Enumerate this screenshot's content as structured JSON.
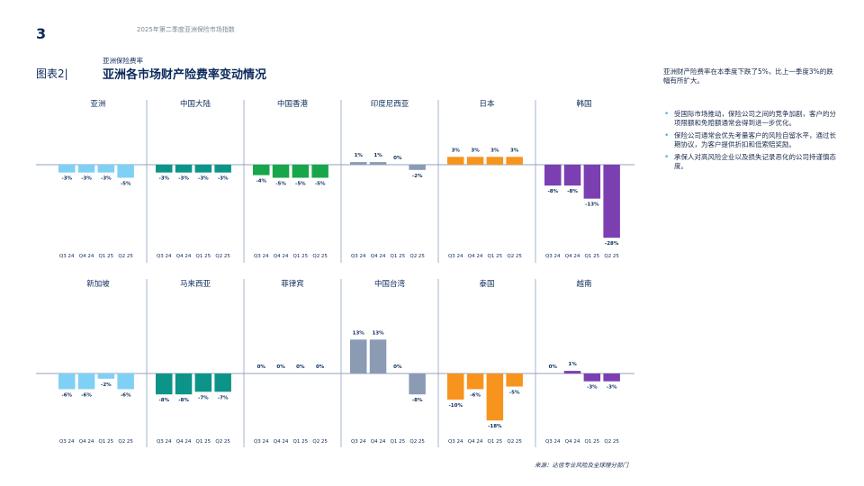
{
  "header": {
    "page_number": "3",
    "report_title": "2025年第二季度亚洲保险市场指数",
    "figure_label": "图表2|",
    "section_label": "亚洲保险费率",
    "chart_title": "亚洲各市场财产险费率变动情况"
  },
  "sidebar": {
    "summary": "亚洲财产险费率在本季度下跌了5%，比上一季度3%的跌幅有所扩大。",
    "bullets": [
      "受国际市场推动，保险公司之间的竞争加剧，客户的分项限额和免赔额通常会得到进一步优化。",
      "保险公司通常会优先考量客户的风险自留水平，通过长期协议，为客户提供折扣和低索赔奖励。",
      "承保人对高风险企业以及损失记录恶化的公司持谨慎态度。"
    ]
  },
  "source": "来源：达信专业风险及全球理分部门",
  "chart_data": {
    "type": "bar",
    "categories": [
      "Q3 24",
      "Q4 24",
      "Q1 25",
      "Q2 25"
    ],
    "panels": [
      {
        "name": "亚洲",
        "values": [
          -3,
          -3,
          -3,
          -5
        ],
        "labels": [
          "-3%",
          "-3%",
          "-3%",
          "-5%"
        ],
        "color": "#7fd0f5"
      },
      {
        "name": "中国大陆",
        "values": [
          -3,
          -3,
          -3,
          -3
        ],
        "labels": [
          "-3%",
          "-3%",
          "-3%",
          "-3%"
        ],
        "color": "#0c9488"
      },
      {
        "name": "中国香港",
        "values": [
          -4,
          -5,
          -5,
          -5
        ],
        "labels": [
          "-4%",
          "-5%",
          "-5%",
          "-5%"
        ],
        "color": "#18a64a"
      },
      {
        "name": "印度尼西亚",
        "values": [
          1,
          1,
          0,
          -2
        ],
        "labels": [
          "1%",
          "1%",
          "0%",
          "-2%"
        ],
        "color": "#8a9bb3"
      },
      {
        "name": "日本",
        "values": [
          3,
          3,
          3,
          3
        ],
        "labels": [
          "3%",
          "3%",
          "3%",
          "3%"
        ],
        "color": "#f7941d"
      },
      {
        "name": "韩国",
        "values": [
          -8,
          -8,
          -13,
          -28
        ],
        "labels": [
          "-8%",
          "-8%",
          "-13%",
          "-28%"
        ],
        "color": "#7b3fb2"
      },
      {
        "name": "新加坡",
        "values": [
          -6,
          -6,
          -2,
          -6
        ],
        "labels": [
          "-6%",
          "-6%",
          "-2%",
          "-6%"
        ],
        "color": "#7fd0f5"
      },
      {
        "name": "马来西亚",
        "values": [
          -8,
          -8,
          -7,
          -7
        ],
        "labels": [
          "-8%",
          "-8%",
          "-7%",
          "-7%"
        ],
        "color": "#0c9488"
      },
      {
        "name": "菲律宾",
        "values": [
          0,
          0,
          0,
          0
        ],
        "labels": [
          "0%",
          "0%",
          "0%",
          "0%"
        ],
        "color": "#18a64a"
      },
      {
        "name": "中国台湾",
        "values": [
          13,
          13,
          0,
          -8
        ],
        "labels": [
          "13%",
          "13%",
          "0%",
          "-8%"
        ],
        "color": "#8a9bb3"
      },
      {
        "name": "泰国",
        "values": [
          -10,
          -6,
          -18,
          -5
        ],
        "labels": [
          "-10%",
          "-6%",
          "-18%",
          "-5%"
        ],
        "color": "#f7941d"
      },
      {
        "name": "越南",
        "values": [
          0,
          1,
          -3,
          -3
        ],
        "labels": [
          "0%",
          "1%",
          "-3%",
          "-3%"
        ],
        "color": "#7b3fb2"
      }
    ],
    "xlabel": "",
    "ylabel": "",
    "grid": false,
    "legend": "none"
  }
}
